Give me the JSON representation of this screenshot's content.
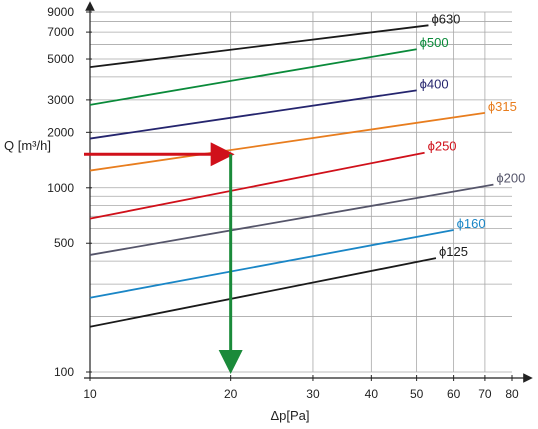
{
  "chart_data": {
    "type": "line",
    "x_scale": "log",
    "y_scale": "log",
    "xlim": [
      10,
      80
    ],
    "ylim": [
      100,
      9000
    ],
    "xlabel": "Δp[Pa]",
    "ylabel": "Q [m³/h]",
    "grid": true,
    "x_ticks": [
      {
        "value": 10,
        "label": "10"
      },
      {
        "value": 20,
        "label": "20"
      },
      {
        "value": 30,
        "label": "30"
      },
      {
        "value": 40,
        "label": "40"
      },
      {
        "value": 50,
        "label": "50"
      },
      {
        "value": 60,
        "label": "60"
      },
      {
        "value": 70,
        "label": "70"
      },
      {
        "value": 80,
        "label": "80"
      }
    ],
    "y_ticks": [
      {
        "value": 100,
        "label": "100"
      },
      {
        "value": 500,
        "label": "500"
      },
      {
        "value": 1000,
        "label": "1000"
      },
      {
        "value": 2000,
        "label": "2000"
      },
      {
        "value": 3000,
        "label": "3000"
      },
      {
        "value": 5000,
        "label": "5000"
      },
      {
        "value": 7000,
        "label": "7000"
      },
      {
        "value": 9000,
        "label": "9000"
      }
    ],
    "y_grid_values": [
      100,
      200,
      300,
      400,
      500,
      600,
      700,
      800,
      900,
      1000,
      2000,
      3000,
      4000,
      5000,
      6000,
      7000,
      8000,
      9000
    ],
    "x_grid_values": [
      20,
      30,
      40,
      50,
      60,
      70
    ],
    "series": [
      {
        "name": "ϕ630",
        "color": "#1a1a1a",
        "label_color": "#1a1a1a",
        "x": [
          10,
          53
        ],
        "y": [
          4520,
          7620
        ]
      },
      {
        "name": "ϕ500",
        "color": "#0a8a3a",
        "label_color": "#0a8a3a",
        "x": [
          10,
          50
        ],
        "y": [
          2820,
          5650
        ]
      },
      {
        "name": "ϕ400",
        "color": "#25256e",
        "label_color": "#25256e",
        "x": [
          10,
          50
        ],
        "y": [
          1850,
          3380
        ]
      },
      {
        "name": "ϕ315",
        "color": "#e87d1e",
        "label_color": "#e87d1e",
        "x": [
          10,
          70
        ],
        "y": [
          1240,
          2550
        ]
      },
      {
        "name": "ϕ250",
        "color": "#d0101a",
        "label_color": "#d0101a",
        "x": [
          10,
          52
        ],
        "y": [
          680,
          1550
        ]
      },
      {
        "name": "ϕ200",
        "color": "#55556a",
        "label_color": "#55556a",
        "x": [
          10,
          73
        ],
        "y": [
          432,
          1040
        ]
      },
      {
        "name": "ϕ160",
        "color": "#1a86c6",
        "label_color": "#1a86c6",
        "x": [
          10,
          60
        ],
        "y": [
          253,
          590
        ]
      },
      {
        "name": "ϕ125",
        "color": "#1a1a1a",
        "label_color": "#1a1a1a",
        "x": [
          10,
          55
        ],
        "y": [
          176,
          415
        ]
      }
    ],
    "annotations": {
      "red_arrow": {
        "color": "#d0101a",
        "x_from": 10,
        "x_to": 20,
        "y": 1520
      },
      "green_arrow": {
        "color": "#1a8a3a",
        "x": 20,
        "y_from": 1520,
        "y_to": 100
      }
    }
  }
}
